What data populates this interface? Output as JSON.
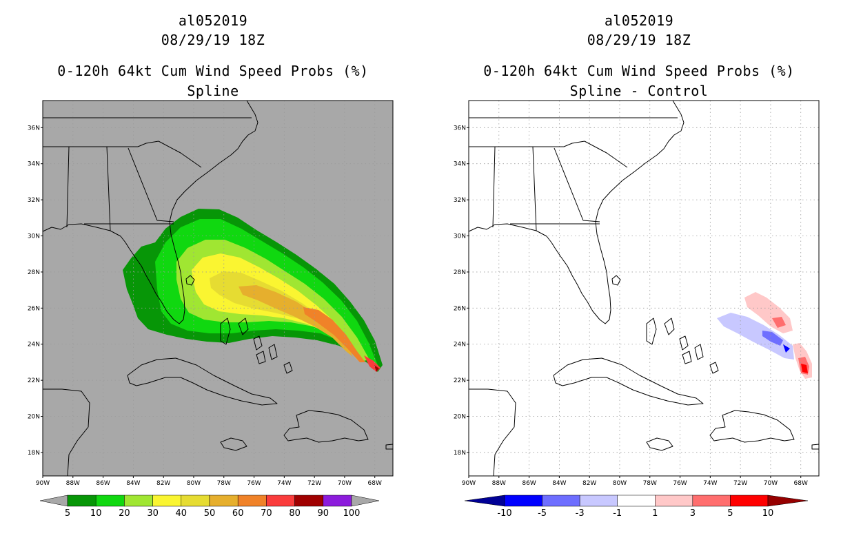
{
  "panels": [
    {
      "id": "spline",
      "title_line1": "al052019",
      "title_line2": "08/29/19 18Z",
      "title_line3": "0-120h 64kt Cum Wind Speed Probs (%)",
      "title_line4": "Spline",
      "background": "#a8a8a8",
      "colorbar": {
        "labels": [
          "5",
          "10",
          "20",
          "30",
          "40",
          "50",
          "60",
          "70",
          "80",
          "90",
          "100"
        ],
        "colors": [
          "#079607",
          "#10d810",
          "#a0e632",
          "#faf531",
          "#e6dc32",
          "#e6af2d",
          "#f08228",
          "#fa3c3c",
          "#a00000",
          "#8c1cdc"
        ],
        "end_color": "#a8a8a8"
      }
    },
    {
      "id": "diff",
      "title_line1": "al052019",
      "title_line2": "08/29/19 18Z",
      "title_line3": "0-120h 64kt Cum Wind Speed Probs (%)",
      "title_line4": "Spline - Control",
      "background": "#ffffff",
      "colorbar": {
        "labels": [
          "-10",
          "-5",
          "-3",
          "-1",
          "1",
          "3",
          "5",
          "10"
        ],
        "colors": [
          "#0000ff",
          "#6e6eff",
          "#c8c8ff",
          "#ffffff",
          "#ffc8c8",
          "#ff6e6e",
          "#ff0000"
        ],
        "left_end_color": "#000096",
        "right_end_color": "#960000"
      }
    }
  ],
  "axes": {
    "lon_labels": [
      "90W",
      "88W",
      "86W",
      "84W",
      "82W",
      "80W",
      "78W",
      "76W",
      "74W",
      "72W",
      "70W",
      "68W"
    ],
    "lat_labels": [
      "18N",
      "20N",
      "22N",
      "24N",
      "26N",
      "28N",
      "30N",
      "32N",
      "34N",
      "36N"
    ]
  }
}
